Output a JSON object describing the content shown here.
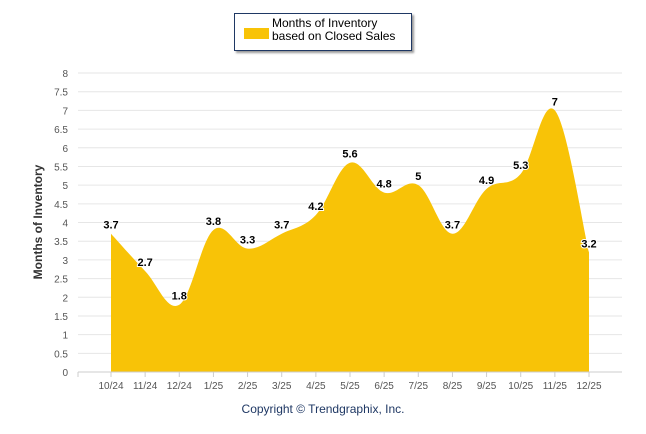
{
  "chart_data": {
    "type": "area",
    "legend": {
      "label": "Months of Inventory based on Closed Sales",
      "placement": "top-center"
    },
    "ylabel": "Months of Inventory",
    "xlabel": "",
    "ylim": [
      0,
      8
    ],
    "yticks": [
      "0",
      "0.5",
      "1",
      "1.5",
      "2",
      "2.5",
      "3",
      "3.5",
      "4",
      "4.5",
      "5",
      "5.5",
      "6",
      "6.5",
      "7",
      "7.5",
      "8"
    ],
    "categories": [
      "10/24",
      "11/24",
      "12/24",
      "1/25",
      "2/25",
      "3/25",
      "4/25",
      "5/25",
      "6/25",
      "7/25",
      "8/25",
      "9/25",
      "10/25",
      "11/25",
      "12/25"
    ],
    "values": [
      3.7,
      2.7,
      1.8,
      3.8,
      3.3,
      3.7,
      4.2,
      5.6,
      4.8,
      5,
      3.7,
      4.9,
      5.3,
      7,
      3.2
    ],
    "labels": [
      "3.7",
      "2.7",
      "1.8",
      "3.8",
      "3.3",
      "3.7",
      "4.2",
      "5.6",
      "4.8",
      "5",
      "3.7",
      "4.9",
      "5.3",
      "7",
      "3.2"
    ],
    "color": "#f8c307",
    "grid": true
  },
  "footer": {
    "copyright": "Copyright © Trendgraphix, Inc."
  }
}
